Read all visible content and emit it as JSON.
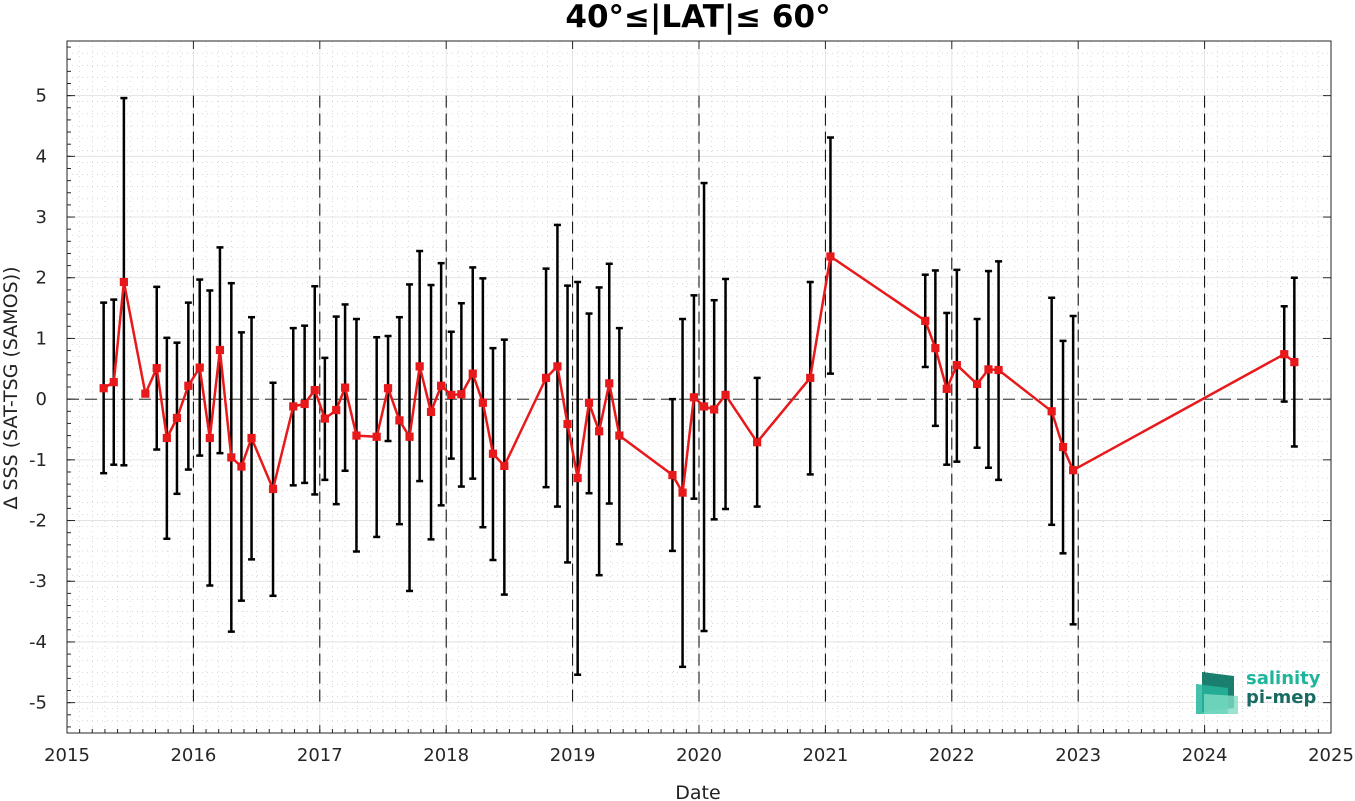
{
  "chart_data": {
    "type": "line",
    "title": "40°≤|LAT|≤ 60°",
    "xlabel": "Date",
    "ylabel": "Δ SSS (SAT-TSG (SAMOS))",
    "xlim": [
      2015.0,
      2025.0
    ],
    "ylim": [
      -5.5,
      5.9
    ],
    "xticks": [
      2015,
      2016,
      2017,
      2018,
      2019,
      2020,
      2021,
      2022,
      2023,
      2024,
      2025
    ],
    "xtick_labels": [
      "2015",
      "2016",
      "2017",
      "2018",
      "2019",
      "2020",
      "2021",
      "2022",
      "2023",
      "2024",
      "2025"
    ],
    "yticks": [
      -5,
      -4,
      -3,
      -2,
      -1,
      0,
      1,
      2,
      3,
      4,
      5
    ],
    "ytick_labels": [
      "-5",
      "-4",
      "-3",
      "-2",
      "-1",
      "0",
      "1",
      "2",
      "3",
      "4",
      "5"
    ],
    "grid": true,
    "year_dividers": [
      2016,
      2017,
      2018,
      2019,
      2020,
      2021,
      2022,
      2023,
      2024
    ],
    "zero_line": true,
    "colors": {
      "line": "#e8191b",
      "errorbar": "#000000",
      "grid": "#b0b0b0"
    },
    "series": [
      {
        "points": [
          {
            "x": 2015.29,
            "y": 0.18,
            "lo": -1.22,
            "hi": 1.59
          },
          {
            "x": 2015.37,
            "y": 0.28,
            "lo": -1.08,
            "hi": 1.64
          },
          {
            "x": 2015.45,
            "y": 1.93,
            "lo": -1.09,
            "hi": 4.96
          },
          {
            "x": 2015.62,
            "y": 0.09,
            "lo": 0.08,
            "hi": 0.1
          },
          {
            "x": 2015.71,
            "y": 0.51,
            "lo": -0.83,
            "hi": 1.85
          },
          {
            "x": 2015.79,
            "y": -0.64,
            "lo": -2.3,
            "hi": 1.01
          },
          {
            "x": 2015.87,
            "y": -0.31,
            "lo": -1.56,
            "hi": 0.93
          },
          {
            "x": 2015.96,
            "y": 0.22,
            "lo": -1.16,
            "hi": 1.59
          },
          {
            "x": 2016.05,
            "y": 0.52,
            "lo": -0.93,
            "hi": 1.97
          },
          {
            "x": 2016.13,
            "y": -0.64,
            "lo": -3.07,
            "hi": 1.79
          },
          {
            "x": 2016.21,
            "y": 0.81,
            "lo": -0.89,
            "hi": 2.5
          },
          {
            "x": 2016.3,
            "y": -0.96,
            "lo": -3.83,
            "hi": 1.91
          },
          {
            "x": 2016.38,
            "y": -1.11,
            "lo": -3.32,
            "hi": 1.1
          },
          {
            "x": 2016.46,
            "y": -0.64,
            "lo": -2.64,
            "hi": 1.35
          },
          {
            "x": 2016.63,
            "y": -1.48,
            "lo": -3.24,
            "hi": 0.27
          },
          {
            "x": 2016.79,
            "y": -0.12,
            "lo": -1.42,
            "hi": 1.17
          },
          {
            "x": 2016.88,
            "y": -0.08,
            "lo": -1.38,
            "hi": 1.21
          },
          {
            "x": 2016.96,
            "y": 0.15,
            "lo": -1.57,
            "hi": 1.86
          },
          {
            "x": 2017.04,
            "y": -0.32,
            "lo": -1.33,
            "hi": 0.68
          },
          {
            "x": 2017.13,
            "y": -0.18,
            "lo": -1.73,
            "hi": 1.36
          },
          {
            "x": 2017.2,
            "y": 0.19,
            "lo": -1.18,
            "hi": 1.56
          },
          {
            "x": 2017.29,
            "y": -0.6,
            "lo": -2.51,
            "hi": 1.32
          },
          {
            "x": 2017.45,
            "y": -0.62,
            "lo": -2.27,
            "hi": 1.02
          },
          {
            "x": 2017.54,
            "y": 0.18,
            "lo": -0.69,
            "hi": 1.04
          },
          {
            "x": 2017.63,
            "y": -0.35,
            "lo": -2.06,
            "hi": 1.35
          },
          {
            "x": 2017.71,
            "y": -0.62,
            "lo": -3.16,
            "hi": 1.89
          },
          {
            "x": 2017.79,
            "y": 0.54,
            "lo": -1.35,
            "hi": 2.44
          },
          {
            "x": 2017.88,
            "y": -0.21,
            "lo": -2.31,
            "hi": 1.88
          },
          {
            "x": 2017.96,
            "y": 0.22,
            "lo": -1.75,
            "hi": 2.24
          },
          {
            "x": 2018.04,
            "y": 0.07,
            "lo": -0.98,
            "hi": 1.11
          },
          {
            "x": 2018.12,
            "y": 0.08,
            "lo": -1.44,
            "hi": 1.58
          },
          {
            "x": 2018.21,
            "y": 0.42,
            "lo": -1.31,
            "hi": 2.17
          },
          {
            "x": 2018.29,
            "y": -0.06,
            "lo": -2.11,
            "hi": 1.99
          },
          {
            "x": 2018.37,
            "y": -0.9,
            "lo": -2.65,
            "hi": 0.84
          },
          {
            "x": 2018.46,
            "y": -1.1,
            "lo": -3.22,
            "hi": 0.98
          },
          {
            "x": 2018.79,
            "y": 0.35,
            "lo": -1.45,
            "hi": 2.15
          },
          {
            "x": 2018.88,
            "y": 0.54,
            "lo": -1.77,
            "hi": 2.87
          },
          {
            "x": 2018.96,
            "y": -0.41,
            "lo": -2.69,
            "hi": 1.87
          },
          {
            "x": 2019.04,
            "y": -1.3,
            "lo": -4.54,
            "hi": 1.93
          },
          {
            "x": 2019.13,
            "y": -0.06,
            "lo": -1.55,
            "hi": 1.41
          },
          {
            "x": 2019.21,
            "y": -0.53,
            "lo": -2.9,
            "hi": 1.84
          },
          {
            "x": 2019.29,
            "y": 0.26,
            "lo": -1.72,
            "hi": 2.23
          },
          {
            "x": 2019.37,
            "y": -0.6,
            "lo": -2.39,
            "hi": 1.17
          },
          {
            "x": 2019.79,
            "y": -1.25,
            "lo": -2.5,
            "hi": 0.0
          },
          {
            "x": 2019.87,
            "y": -1.54,
            "lo": -4.41,
            "hi": 1.32
          },
          {
            "x": 2019.96,
            "y": 0.03,
            "lo": -1.64,
            "hi": 1.71
          },
          {
            "x": 2020.04,
            "y": -0.12,
            "lo": -3.82,
            "hi": 3.56
          },
          {
            "x": 2020.12,
            "y": -0.17,
            "lo": -1.98,
            "hi": 1.63
          },
          {
            "x": 2020.21,
            "y": 0.07,
            "lo": -1.81,
            "hi": 1.98
          },
          {
            "x": 2020.46,
            "y": -0.71,
            "lo": -1.77,
            "hi": 0.35
          },
          {
            "x": 2020.88,
            "y": 0.35,
            "lo": -1.24,
            "hi": 1.93
          },
          {
            "x": 2021.04,
            "y": 2.35,
            "lo": 0.42,
            "hi": 4.31
          },
          {
            "x": 2021.79,
            "y": 1.29,
            "lo": 0.53,
            "hi": 2.05
          },
          {
            "x": 2021.87,
            "y": 0.84,
            "lo": -0.44,
            "hi": 2.12
          },
          {
            "x": 2021.96,
            "y": 0.17,
            "lo": -1.08,
            "hi": 1.42
          },
          {
            "x": 2022.04,
            "y": 0.56,
            "lo": -1.03,
            "hi": 2.13
          },
          {
            "x": 2022.2,
            "y": 0.25,
            "lo": -0.8,
            "hi": 1.32
          },
          {
            "x": 2022.29,
            "y": 0.49,
            "lo": -1.13,
            "hi": 2.11
          },
          {
            "x": 2022.37,
            "y": 0.48,
            "lo": -1.33,
            "hi": 2.27
          },
          {
            "x": 2022.79,
            "y": -0.2,
            "lo": -2.07,
            "hi": 1.67
          },
          {
            "x": 2022.88,
            "y": -0.79,
            "lo": -2.54,
            "hi": 0.96
          },
          {
            "x": 2022.96,
            "y": -1.17,
            "lo": -3.71,
            "hi": 1.37
          },
          {
            "x": 2024.63,
            "y": 0.74,
            "lo": -0.04,
            "hi": 1.53
          },
          {
            "x": 2024.71,
            "y": 0.61,
            "lo": -0.78,
            "hi": 2.0
          }
        ]
      }
    ]
  },
  "logo": {
    "line1": "salinity",
    "line2": "pi-mep"
  }
}
